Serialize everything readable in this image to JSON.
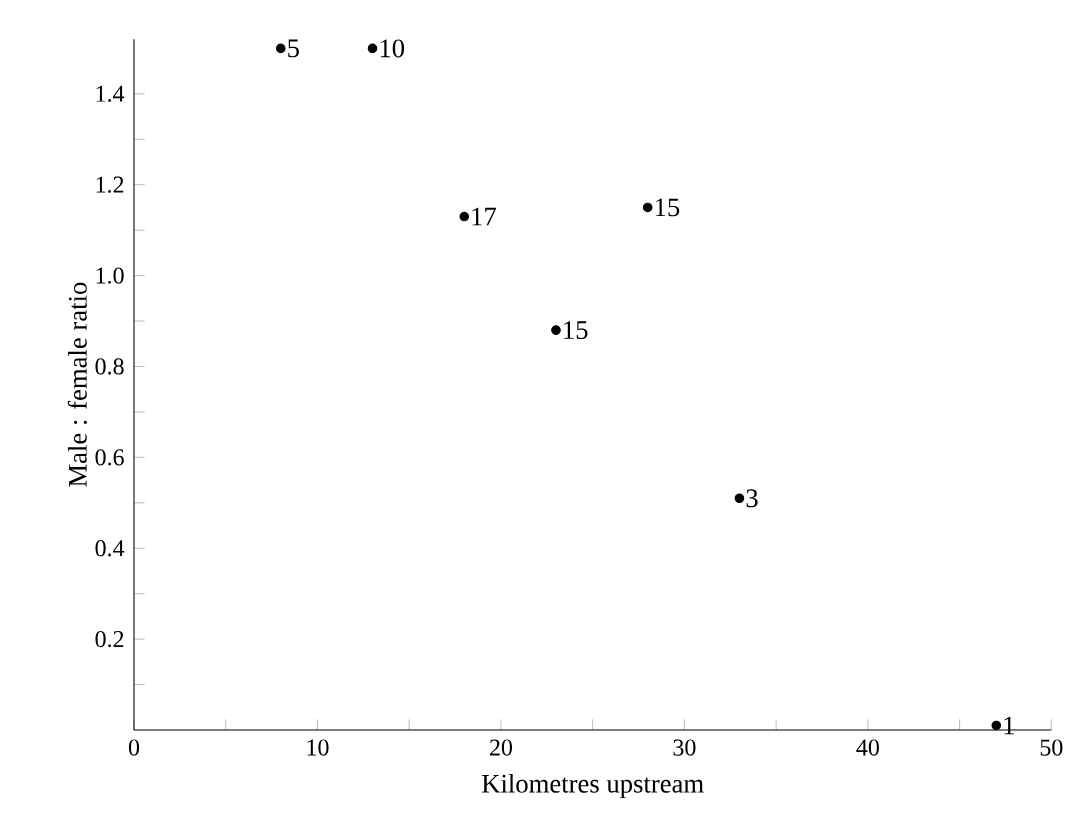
{
  "chart_data": {
    "type": "scatter",
    "xlabel": "Kilometres upstream",
    "ylabel": "Male : female ratio",
    "x": [
      8,
      13,
      18,
      23,
      28,
      33,
      47
    ],
    "values": [
      1.5,
      1.5,
      1.13,
      0.88,
      1.15,
      0.51,
      0.01
    ],
    "color": "#000000",
    "marker": "circle",
    "grid": false,
    "xlim": [
      0,
      50
    ],
    "ylim": [
      0,
      1.52
    ],
    "xticks": [
      0,
      {
        "value": 5,
        "label": null
      },
      10,
      {
        "value": 15,
        "label": null
      },
      20,
      {
        "value": 25,
        "label": null
      },
      30,
      {
        "value": 35,
        "label": null
      },
      40,
      {
        "value": 45,
        "label": null
      },
      50
    ],
    "yticks": [
      {
        "value": 0.1,
        "label": null
      },
      0.2,
      {
        "value": 0.3,
        "label": null
      },
      0.4,
      {
        "value": 0.5,
        "label": null
      },
      0.6,
      {
        "value": 0.7,
        "label": null
      },
      0.8,
      {
        "value": 0.9,
        "label": null
      },
      {
        "value": 1,
        "label": "1.0"
      },
      {
        "value": 1.1,
        "label": null
      },
      1.2,
      {
        "value": 1.3,
        "label": null
      },
      1.4
    ],
    "annotations": [
      {
        "text": "5",
        "x": 8,
        "y": 1.5
      },
      {
        "text": "10",
        "x": 13,
        "y": 1.5
      },
      {
        "text": "17",
        "x": 18,
        "y": 1.13
      },
      {
        "text": "15",
        "x": 23,
        "y": 0.88
      },
      {
        "text": "15",
        "x": 28,
        "y": 1.15
      },
      {
        "text": "3",
        "x": 33,
        "y": 0.51
      },
      {
        "text": "1",
        "x": 47,
        "y": 0.01
      }
    ]
  }
}
